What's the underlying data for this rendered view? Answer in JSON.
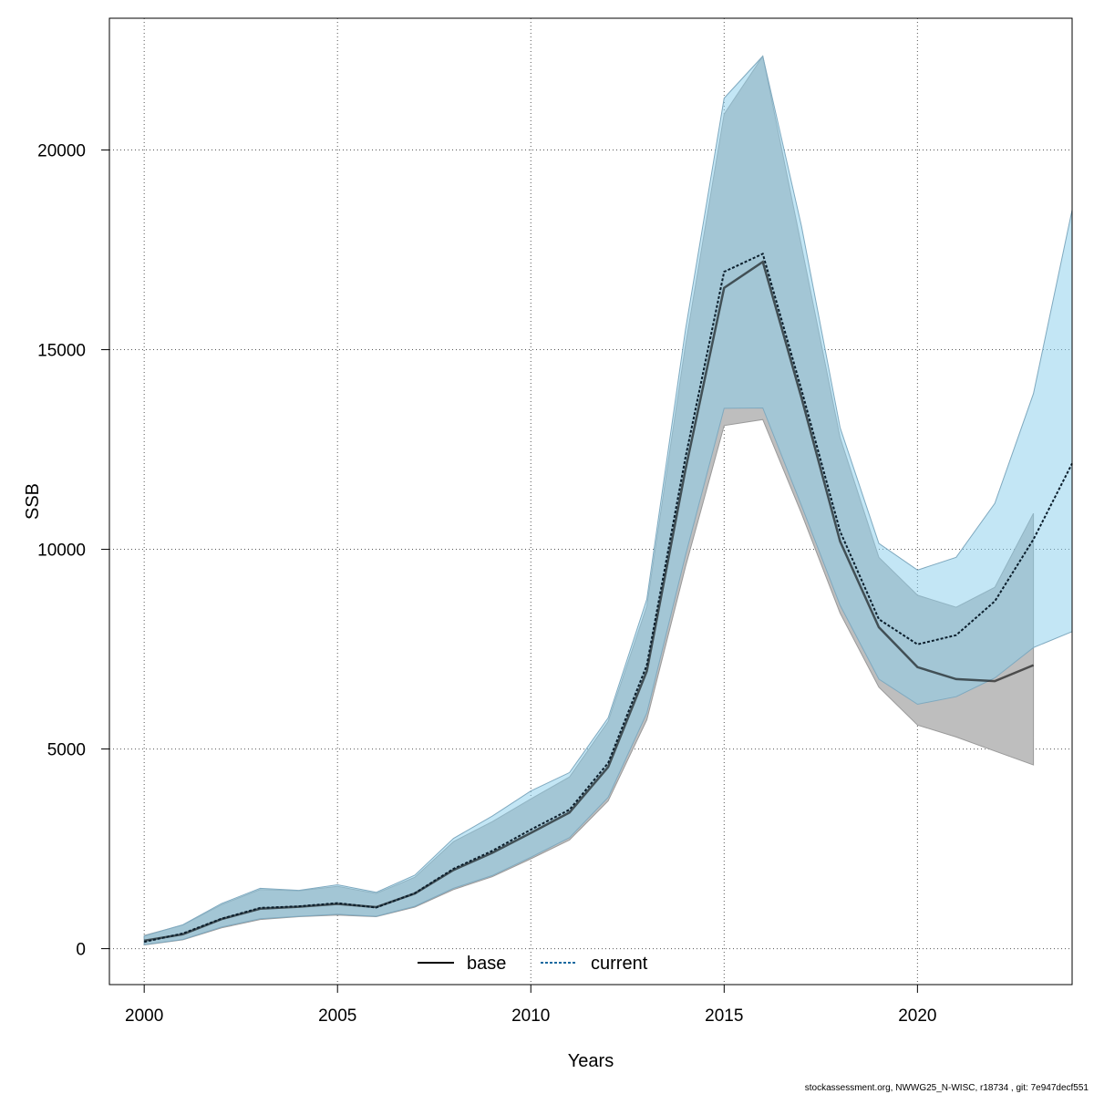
{
  "chart_data": {
    "type": "line",
    "title": "",
    "xlabel": "Years",
    "ylabel": "SSB",
    "xlim": [
      1999.1,
      2024
    ],
    "ylim": [
      -900,
      23300
    ],
    "x_ticks": [
      2000,
      2005,
      2010,
      2015,
      2020
    ],
    "y_ticks": [
      0,
      5000,
      10000,
      15000,
      20000
    ],
    "grid": true,
    "legend": {
      "placement": "bottom-center",
      "entries": [
        "base",
        "current"
      ]
    },
    "colors": {
      "base_band": "#bebebe",
      "current_band": "#87ceeb",
      "base_line": "#000000",
      "current_line": "#1a6aa0"
    },
    "series": [
      {
        "name": "base",
        "x": [
          2000,
          2001,
          2002,
          2003,
          2004,
          2005,
          2006,
          2007,
          2008,
          2009,
          2010,
          2011,
          2012,
          2013,
          2014,
          2015,
          2016,
          2017,
          2018,
          2019,
          2020,
          2021,
          2022,
          2023
        ],
        "values": [
          200,
          360,
          740,
          1000,
          1050,
          1120,
          1040,
          1380,
          1970,
          2400,
          2900,
          3410,
          4550,
          6950,
          12000,
          16550,
          17200,
          13800,
          10200,
          8050,
          7050,
          6750,
          6700,
          7100
        ],
        "lower": [
          90,
          220,
          520,
          730,
          800,
          840,
          800,
          1040,
          1480,
          1800,
          2250,
          2720,
          3700,
          5730,
          9560,
          13100,
          13250,
          10900,
          8400,
          6550,
          5600,
          5300,
          4950,
          4600
        ],
        "upper": [
          330,
          590,
          1100,
          1480,
          1450,
          1560,
          1380,
          1790,
          2680,
          3180,
          3750,
          4300,
          5690,
          8580,
          15120,
          20900,
          22350,
          17600,
          12800,
          9800,
          8850,
          8550,
          9050,
          10900
        ]
      },
      {
        "name": "current",
        "x": [
          2000,
          2001,
          2002,
          2003,
          2004,
          2005,
          2006,
          2007,
          2008,
          2009,
          2010,
          2011,
          2012,
          2013,
          2014,
          2015,
          2016,
          2017,
          2018,
          2019,
          2020,
          2021,
          2022,
          2023,
          2024
        ],
        "values": [
          170,
          380,
          750,
          1020,
          1060,
          1140,
          1030,
          1390,
          2000,
          2450,
          2980,
          3480,
          4650,
          7100,
          12300,
          16950,
          17400,
          14000,
          10450,
          8250,
          7620,
          7850,
          8700,
          10250,
          12150
        ],
        "lower": [
          100,
          230,
          540,
          750,
          810,
          860,
          810,
          1060,
          1510,
          1830,
          2290,
          2780,
          3790,
          5900,
          9850,
          13530,
          13540,
          11100,
          8600,
          6750,
          6120,
          6310,
          6780,
          7540,
          7940
        ],
        "upper": [
          320,
          600,
          1130,
          1510,
          1460,
          1600,
          1410,
          1840,
          2760,
          3320,
          3950,
          4410,
          5780,
          8750,
          15500,
          21300,
          22350,
          18100,
          13050,
          10150,
          9480,
          9800,
          11150,
          13900,
          18500
        ]
      }
    ]
  },
  "footer_text": "stockassessment.org, NWWG25_N-WISC, r18734 , git: 7e947decf551"
}
